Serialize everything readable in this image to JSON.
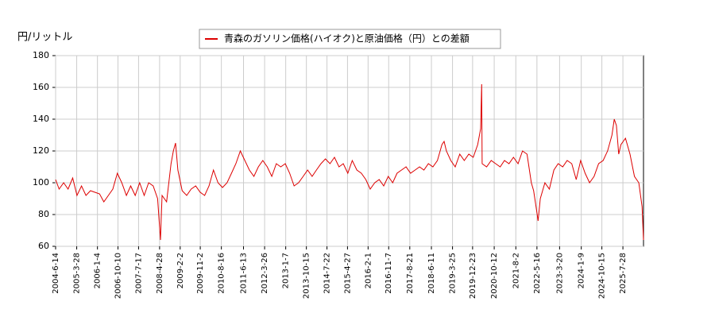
{
  "chart_data": {
    "type": "line",
    "y_axis_label": "円/リットル",
    "ylim": [
      60,
      180
    ],
    "yticks": [
      60,
      80,
      100,
      120,
      140,
      160,
      180
    ],
    "grid": true,
    "legend": "top",
    "xlim": [
      "2004-6-14",
      "2026-5-4"
    ],
    "xticks": [
      "2004-6-14",
      "2005-3-28",
      "2006-1-4",
      "2006-10-10",
      "2007-7-17",
      "2008-4-28",
      "2009-2-2",
      "2009-11-2",
      "2010-8-16",
      "2011-6-13",
      "2012-3-26",
      "2013-1-7",
      "2013-10-15",
      "2014-7-22",
      "2015-4-27",
      "2016-2-1",
      "2016-11-7",
      "2017-8-21",
      "2018-6-11",
      "2019-3-25",
      "2019-12-23",
      "2020-10-12",
      "2021-8-2",
      "2022-5-16",
      "2023-3-20",
      "2024-1-9",
      "2024-10-15",
      "2025-7-28"
    ],
    "x": [
      "2004-6-14",
      "2004-8-1",
      "2004-10-1",
      "2004-12-1",
      "2005-2-1",
      "2005-4-1",
      "2005-6-1",
      "2005-8-1",
      "2005-10-1",
      "2005-12-1",
      "2006-2-1",
      "2006-4-1",
      "2006-6-1",
      "2006-8-1",
      "2006-10-1",
      "2006-12-1",
      "2007-2-1",
      "2007-4-1",
      "2007-6-1",
      "2007-8-1",
      "2007-10-1",
      "2007-12-1",
      "2008-2-1",
      "2008-4-1",
      "2008-5-10",
      "2008-6-1",
      "2008-8-1",
      "2008-10-1",
      "2008-11-1",
      "2008-12-1",
      "2009-1-1",
      "2009-3-1",
      "2009-5-1",
      "2009-7-1",
      "2009-9-1",
      "2009-11-1",
      "2010-1-1",
      "2010-3-1",
      "2010-5-1",
      "2010-7-1",
      "2010-9-1",
      "2010-11-1",
      "2011-1-1",
      "2011-3-1",
      "2011-5-1",
      "2011-7-1",
      "2011-9-1",
      "2011-11-1",
      "2012-1-1",
      "2012-3-1",
      "2012-5-1",
      "2012-7-1",
      "2012-9-1",
      "2012-11-1",
      "2013-1-1",
      "2013-3-1",
      "2013-5-1",
      "2013-7-1",
      "2013-9-1",
      "2013-11-1",
      "2014-1-1",
      "2014-3-1",
      "2014-5-1",
      "2014-7-1",
      "2014-9-1",
      "2014-11-1",
      "2015-1-1",
      "2015-3-1",
      "2015-5-1",
      "2015-7-1",
      "2015-9-1",
      "2015-11-1",
      "2016-1-1",
      "2016-3-1",
      "2016-5-1",
      "2016-7-1",
      "2016-9-1",
      "2016-11-1",
      "2017-1-1",
      "2017-3-1",
      "2017-5-1",
      "2017-7-1",
      "2017-9-1",
      "2017-11-1",
      "2018-1-1",
      "2018-3-1",
      "2018-5-1",
      "2018-7-1",
      "2018-9-1",
      "2018-11-1",
      "2018-12-1",
      "2019-1-1",
      "2019-3-1",
      "2019-5-1",
      "2019-7-1",
      "2019-9-1",
      "2019-11-1",
      "2020-1-1",
      "2020-3-1",
      "2020-4-10",
      "2020-4-25",
      "2020-5-1",
      "2020-7-1",
      "2020-9-1",
      "2020-11-1",
      "2021-1-1",
      "2021-3-1",
      "2021-5-1",
      "2021-7-1",
      "2021-9-1",
      "2021-11-1",
      "2022-1-1",
      "2022-3-1",
      "2022-4-1",
      "2022-5-20",
      "2022-6-1",
      "2022-7-1",
      "2022-9-1",
      "2022-11-1",
      "2023-1-1",
      "2023-3-1",
      "2023-5-1",
      "2023-7-1",
      "2023-9-1",
      "2023-11-1",
      "2024-1-1",
      "2024-3-1",
      "2024-5-1",
      "2024-7-1",
      "2024-9-1",
      "2024-11-1",
      "2025-1-1",
      "2025-3-1",
      "2025-4-1",
      "2025-5-1",
      "2025-6-1",
      "2025-7-1",
      "2025-9-1",
      "2025-11-1",
      "2026-1-1",
      "2026-3-1",
      "2026-4-15",
      "2026-5-4"
    ],
    "series": [
      {
        "name": "青森のガソリン価格(ハイオク)と原油価格（円）との差額",
        "color": "#dd0000",
        "values": [
          102,
          96,
          100,
          96,
          103,
          92,
          98,
          92,
          95,
          94,
          93,
          88,
          92,
          96,
          106,
          100,
          92,
          98,
          92,
          100,
          92,
          100,
          98,
          90,
          64,
          92,
          88,
          112,
          120,
          125,
          108,
          95,
          92,
          96,
          98,
          94,
          92,
          98,
          108,
          100,
          97,
          100,
          106,
          112,
          120,
          114,
          108,
          104,
          110,
          114,
          110,
          104,
          112,
          110,
          112,
          106,
          98,
          100,
          104,
          108,
          104,
          108,
          112,
          115,
          112,
          116,
          110,
          112,
          106,
          114,
          108,
          106,
          102,
          96,
          100,
          102,
          98,
          104,
          100,
          106,
          108,
          110,
          106,
          108,
          110,
          108,
          112,
          110,
          114,
          124,
          126,
          120,
          114,
          110,
          118,
          114,
          118,
          116,
          124,
          134,
          162,
          112,
          110,
          114,
          112,
          110,
          114,
          112,
          116,
          112,
          120,
          118,
          100,
          95,
          80,
          76,
          90,
          100,
          96,
          108,
          112,
          110,
          114,
          112,
          102,
          114,
          106,
          100,
          104,
          112,
          114,
          120,
          130,
          140,
          136,
          118,
          124,
          128,
          118,
          104,
          100,
          85,
          64
        ]
      }
    ]
  }
}
